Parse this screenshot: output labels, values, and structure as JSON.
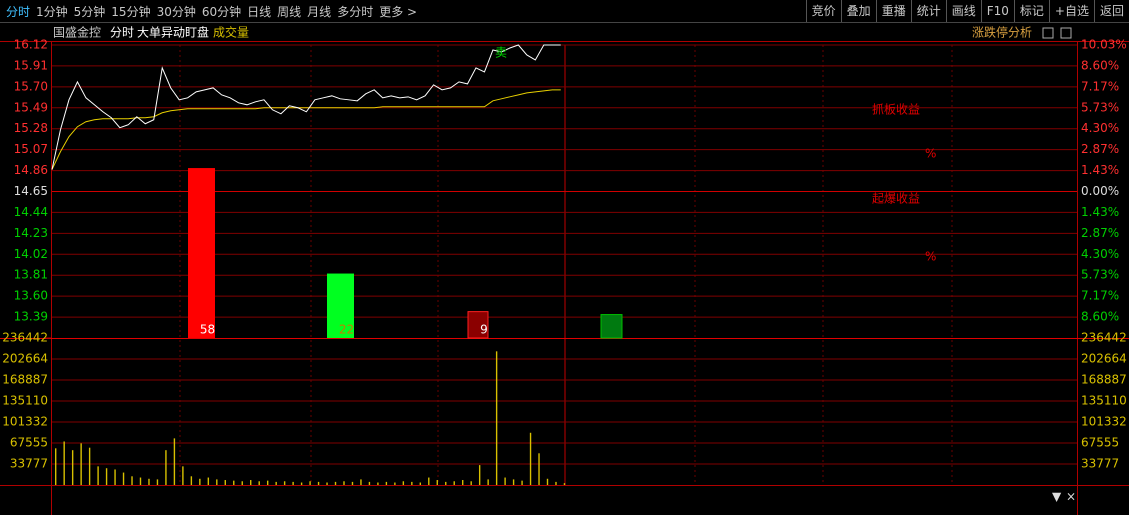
{
  "toolbar": {
    "left": [
      "分时",
      "1分钟",
      "5分钟",
      "15分钟",
      "30分钟",
      "60分钟",
      "日线",
      "周线",
      "月线",
      "多分时",
      "更多 >"
    ],
    "right": [
      "竞价",
      "叠加",
      "重播",
      "统计",
      "画线",
      "F10",
      "标记",
      "+自选",
      "返回"
    ]
  },
  "header": {
    "stock": "国盛金控",
    "items": [
      "分时",
      "大单异动盯盘"
    ],
    "indicator": "成交量",
    "right": "涨跌停分析"
  },
  "price_chart": {
    "ylim": [
      13.18,
      16.12
    ],
    "yticks": [
      16.12,
      15.91,
      {
        "value": 15.7,
        "label": "15.70"
      },
      15.49,
      15.28,
      15.07,
      14.86,
      14.65,
      14.44,
      14.23,
      14.02,
      13.81,
      {
        "value": 13.6,
        "label": "13.60"
      },
      13.39
    ],
    "pct_labels": [
      "10.03%",
      "8.60%",
      "7.17%",
      "5.73%",
      "4.30%",
      "2.87%",
      "1.43%",
      "0.00%",
      "1.43%",
      "2.87%",
      "4.30%",
      "5.73%",
      "7.17%",
      "8.60%"
    ],
    "price": [
      14.87,
      15.27,
      15.57,
      15.75,
      15.59,
      15.52,
      15.45,
      15.39,
      15.29,
      15.32,
      15.4,
      15.33,
      15.37,
      15.89,
      15.69,
      15.57,
      15.59,
      15.65,
      15.67,
      15.69,
      15.62,
      15.59,
      15.54,
      15.52,
      15.55,
      15.57,
      15.47,
      15.43,
      15.51,
      15.49,
      15.45,
      15.57,
      15.59,
      15.61,
      15.58,
      15.57,
      15.56,
      15.63,
      15.67,
      15.59,
      15.61,
      15.59,
      15.6,
      15.57,
      15.61,
      15.72,
      15.67,
      15.69,
      15.75,
      15.73,
      15.89,
      15.85,
      16.07,
      16.05,
      16.09,
      16.12,
      16.02,
      15.97,
      16.12,
      16.12,
      16.12
    ],
    "avg": [
      14.87,
      15.05,
      15.2,
      15.3,
      15.35,
      15.37,
      15.38,
      15.38,
      15.38,
      15.38,
      15.39,
      15.39,
      15.4,
      15.44,
      15.46,
      15.47,
      15.48,
      15.48,
      15.48,
      15.48,
      15.48,
      15.48,
      15.48,
      15.48,
      15.48,
      15.49,
      15.49,
      15.49,
      15.49,
      15.49,
      15.49,
      15.49,
      15.49,
      15.49,
      15.49,
      15.49,
      15.49,
      15.49,
      15.49,
      15.5,
      15.5,
      15.5,
      15.5,
      15.5,
      15.5,
      15.5,
      15.5,
      15.5,
      15.5,
      15.5,
      15.5,
      15.5,
      15.56,
      15.58,
      15.6,
      15.62,
      15.64,
      15.65,
      15.66,
      15.67,
      15.67
    ],
    "price_color": "#ffffff",
    "avg_color": "#e8d000",
    "sell_marker": "卖"
  },
  "big_orders": {
    "ylim": [
      0,
      100
    ],
    "bars": [
      {
        "value": 58,
        "label": "58",
        "color": "#ff0000"
      },
      {
        "value": 22,
        "label": "22",
        "color": "#00ff20"
      },
      {
        "value": 9,
        "label": "9",
        "color": "#8b0000"
      },
      {
        "value": 8,
        "color": "#007a10"
      }
    ]
  },
  "annotations": [
    "抓板收益",
    "%",
    "起爆收益",
    "%"
  ],
  "volume_chart": {
    "ylim": [
      0,
      236442
    ],
    "yticks": [
      236442,
      202664,
      168887,
      135110,
      101332,
      67555,
      33777
    ],
    "color": "#d8c000",
    "values": [
      59000,
      70000,
      56000,
      67000,
      60000,
      30000,
      27000,
      25000,
      20000,
      14000,
      12000,
      10000,
      9000,
      56000,
      75000,
      30000,
      14000,
      10000,
      12000,
      9000,
      8000,
      7000,
      6000,
      8000,
      6000,
      7000,
      5000,
      6000,
      5000,
      4000,
      6000,
      5000,
      4000,
      5000,
      6000,
      5000,
      9000,
      5000,
      4000,
      5000,
      4000,
      6000,
      5000,
      4000,
      12000,
      8000,
      5000,
      6000,
      8000,
      6000,
      32000,
      9000,
      215000,
      12000,
      9000,
      7000,
      84000,
      51000,
      10000,
      5000,
      3000
    ]
  }
}
